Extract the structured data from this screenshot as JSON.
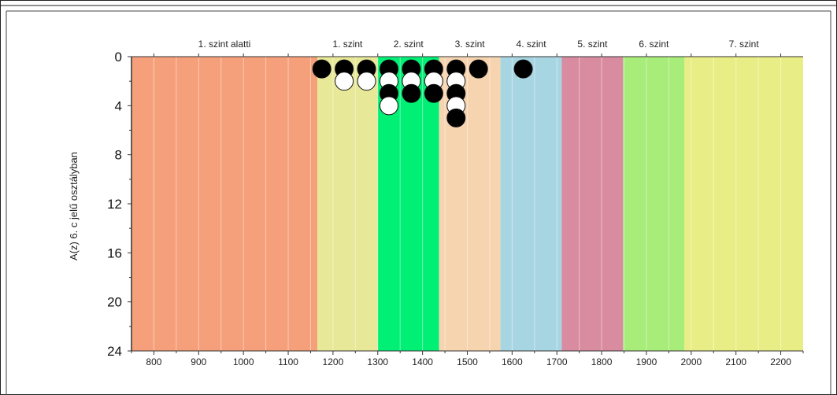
{
  "chart_data": {
    "type": "scatter",
    "ylabel": "A(z) 6. c jelű osztályban",
    "xlabel": "",
    "xlim": [
      750,
      2250
    ],
    "ylim": [
      24,
      0
    ],
    "x_ticks": [
      800,
      900,
      1000,
      1100,
      1200,
      1300,
      1400,
      1500,
      1600,
      1700,
      1800,
      1900,
      2000,
      2100,
      2200
    ],
    "y_ticks": [
      0,
      4,
      8,
      12,
      16,
      20,
      24
    ],
    "grid": true,
    "levels": [
      {
        "label": "1. szint alatti",
        "from": 750,
        "to": 1165,
        "color": "#f5a07a"
      },
      {
        "label": "1. szint",
        "from": 1165,
        "to": 1300,
        "color": "#e8e899"
      },
      {
        "label": "2. szint",
        "from": 1300,
        "to": 1437,
        "color": "#00f075"
      },
      {
        "label": "3. szint",
        "from": 1437,
        "to": 1574,
        "color": "#f7d4b0"
      },
      {
        "label": "4. szint",
        "from": 1574,
        "to": 1711,
        "color": "#a8d5e2"
      },
      {
        "label": "5. szint",
        "from": 1711,
        "to": 1848,
        "color": "#d98ca0"
      },
      {
        "label": "6. szint",
        "from": 1848,
        "to": 1985,
        "color": "#a8ec7a"
      },
      {
        "label": "7. szint",
        "from": 1985,
        "to": 2250,
        "color": "#e8ee85"
      }
    ],
    "points": [
      {
        "x": 1175,
        "y": 1,
        "fill": "black"
      },
      {
        "x": 1225,
        "y": 1,
        "fill": "black"
      },
      {
        "x": 1225,
        "y": 2,
        "fill": "white"
      },
      {
        "x": 1275,
        "y": 1,
        "fill": "black"
      },
      {
        "x": 1275,
        "y": 2,
        "fill": "white"
      },
      {
        "x": 1325,
        "y": 1,
        "fill": "black"
      },
      {
        "x": 1325,
        "y": 2,
        "fill": "white"
      },
      {
        "x": 1325,
        "y": 3,
        "fill": "black"
      },
      {
        "x": 1325,
        "y": 4,
        "fill": "white"
      },
      {
        "x": 1375,
        "y": 1,
        "fill": "black"
      },
      {
        "x": 1375,
        "y": 2,
        "fill": "white"
      },
      {
        "x": 1375,
        "y": 3,
        "fill": "black"
      },
      {
        "x": 1425,
        "y": 1,
        "fill": "black"
      },
      {
        "x": 1425,
        "y": 2,
        "fill": "white"
      },
      {
        "x": 1425,
        "y": 3,
        "fill": "black"
      },
      {
        "x": 1475,
        "y": 1,
        "fill": "black"
      },
      {
        "x": 1475,
        "y": 2,
        "fill": "white"
      },
      {
        "x": 1475,
        "y": 3,
        "fill": "black"
      },
      {
        "x": 1475,
        "y": 4,
        "fill": "white"
      },
      {
        "x": 1475,
        "y": 5,
        "fill": "black"
      },
      {
        "x": 1525,
        "y": 1,
        "fill": "black"
      },
      {
        "x": 1625,
        "y": 1,
        "fill": "black"
      }
    ]
  }
}
